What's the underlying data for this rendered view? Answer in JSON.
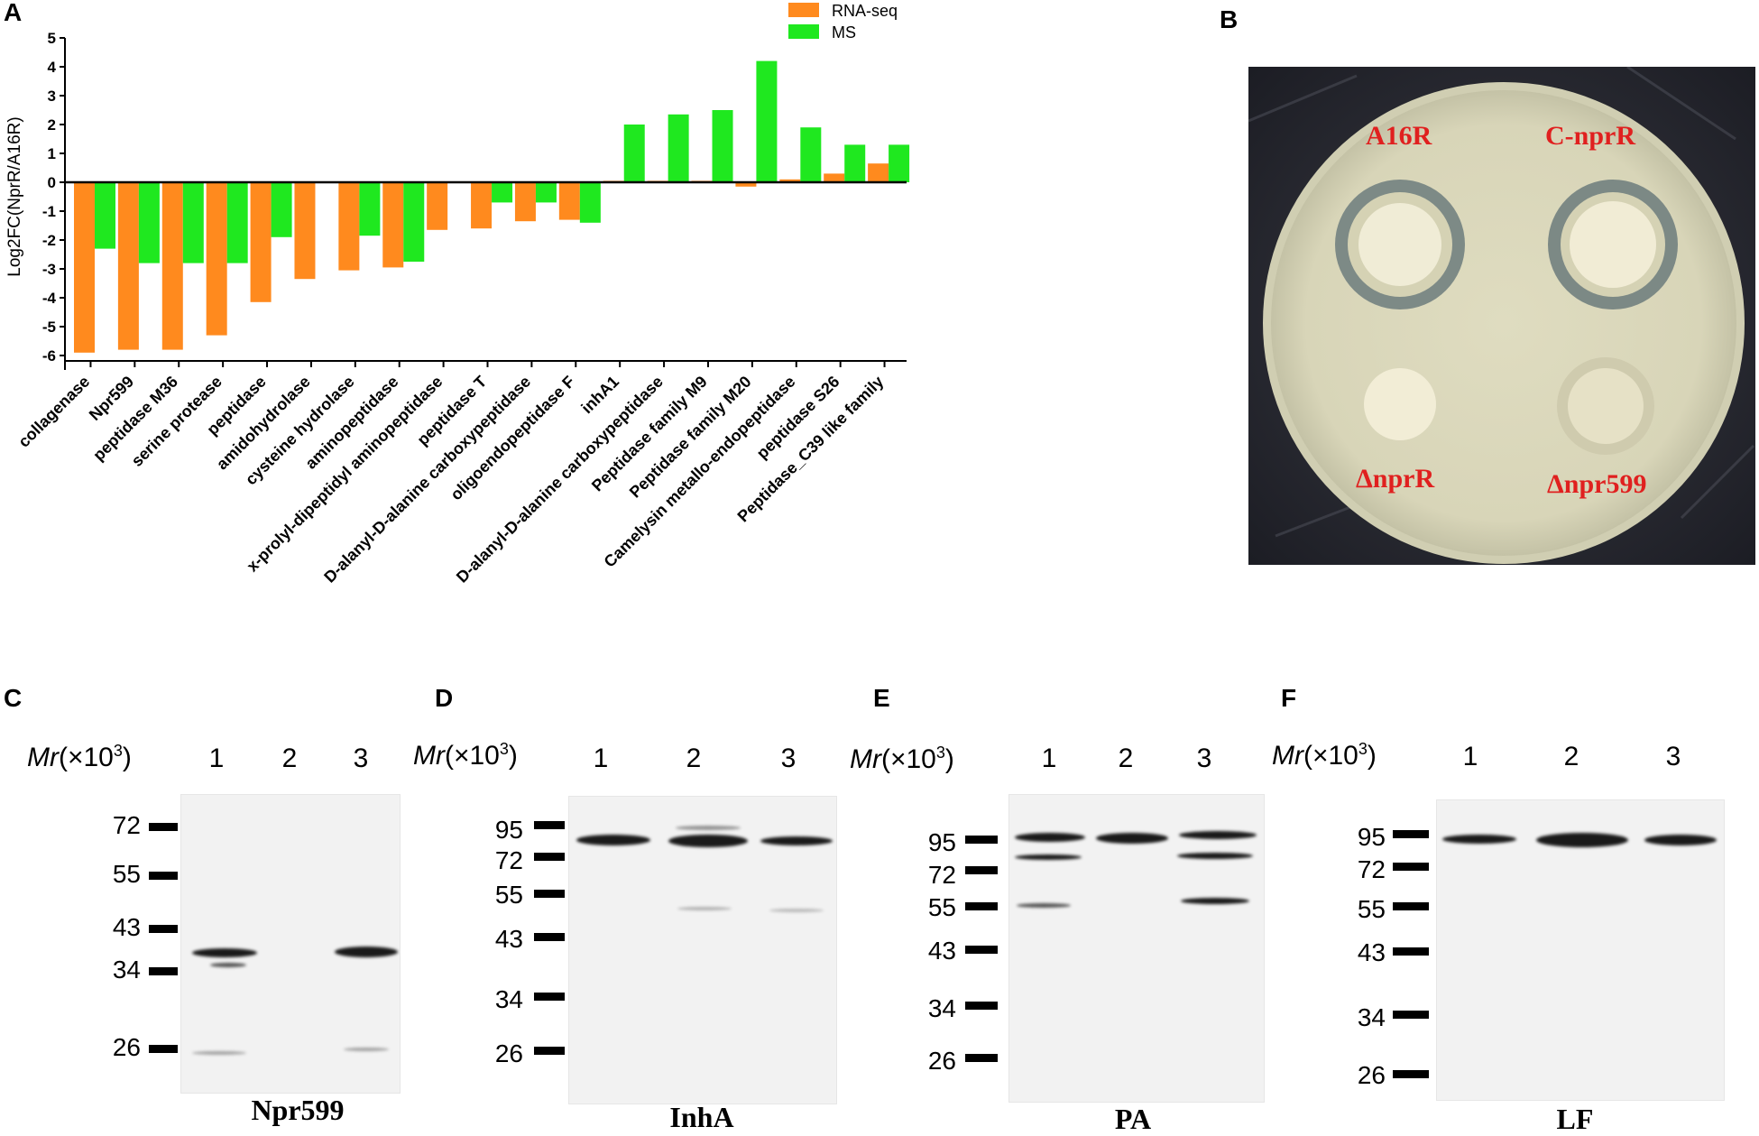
{
  "panels": {
    "a": "A",
    "b": "B",
    "c": "C",
    "d": "D",
    "e": "E",
    "f": "F"
  },
  "colors": {
    "rnaseq": "#ff8a1e",
    "ms": "#1fe81f",
    "plate_label": "#e0201f"
  },
  "chart_data": {
    "type": "bar",
    "ylabel": "Log2FC(NprR/A16R)",
    "ylim": [
      -6.5,
      5
    ],
    "yticks": [
      5,
      4,
      3,
      2,
      1,
      0,
      -1,
      -2,
      -3,
      -4,
      -5,
      -6
    ],
    "legend_position": "top-right",
    "categories": [
      "collagenase",
      "Npr599",
      "peptidase M36",
      "serine protease",
      "peptidase",
      "amidohydrolase",
      "cysteine hydrolase",
      "aminopeptidase",
      "x-prolyl-dipeptidyl aminopeptidase",
      "peptidase T",
      "D-alanyl-D-alanine carboxypeptidase",
      "oligoendopeptidase F",
      "inhA1",
      "D-alanyl-D-alanine carboxypeptidase",
      "Peptidase family M9",
      "Peptidase family M20",
      "Camelysin metallo-endopeptidase",
      "peptidase S26",
      "Peptidase_C39 like family"
    ],
    "series": [
      {
        "name": "RNA-seq",
        "values": [
          -5.9,
          -5.8,
          -5.8,
          -5.3,
          -4.15,
          -3.35,
          -3.05,
          -2.95,
          -1.65,
          -1.6,
          -1.35,
          -1.3,
          0.05,
          0.05,
          0.05,
          -0.15,
          0.1,
          0.3,
          0.65
        ]
      },
      {
        "name": "MS",
        "values": [
          -2.3,
          -2.8,
          -2.8,
          -2.8,
          -1.9,
          null,
          -1.85,
          -2.75,
          null,
          -0.7,
          -0.7,
          -1.4,
          2.0,
          2.35,
          2.5,
          4.2,
          1.9,
          1.3,
          1.3
        ]
      }
    ]
  },
  "plate": {
    "labels": [
      "A16R",
      "C-nprR",
      "ΔnprR",
      "Δnpr599"
    ]
  },
  "blots": [
    {
      "title": "Npr599",
      "mr_prefix": "Mr",
      "mr_suffix": "(×10",
      "mr_exp": "3",
      "mr_close": ")",
      "lanes": [
        "1",
        "2",
        "3"
      ],
      "markers": [
        "72",
        "55",
        "43",
        "34",
        "26"
      ]
    },
    {
      "title": "InhA",
      "mr_prefix": "Mr",
      "mr_suffix": "(×10",
      "mr_exp": "3",
      "mr_close": ")",
      "lanes": [
        "1",
        "2",
        "3"
      ],
      "markers": [
        "95",
        "72",
        "55",
        "43",
        "34",
        "26"
      ]
    },
    {
      "title": "PA",
      "mr_prefix": "Mr",
      "mr_suffix": "(×10",
      "mr_exp": "3",
      "mr_close": ")",
      "lanes": [
        "1",
        "2",
        "3"
      ],
      "markers": [
        "95",
        "72",
        "55",
        "43",
        "34",
        "26"
      ]
    },
    {
      "title": "LF",
      "mr_prefix": "Mr",
      "mr_suffix": "(×10",
      "mr_exp": "3",
      "mr_close": ")",
      "lanes": [
        "1",
        "2",
        "3"
      ],
      "markers": [
        "95",
        "72",
        "55",
        "43",
        "34",
        "26"
      ]
    }
  ]
}
